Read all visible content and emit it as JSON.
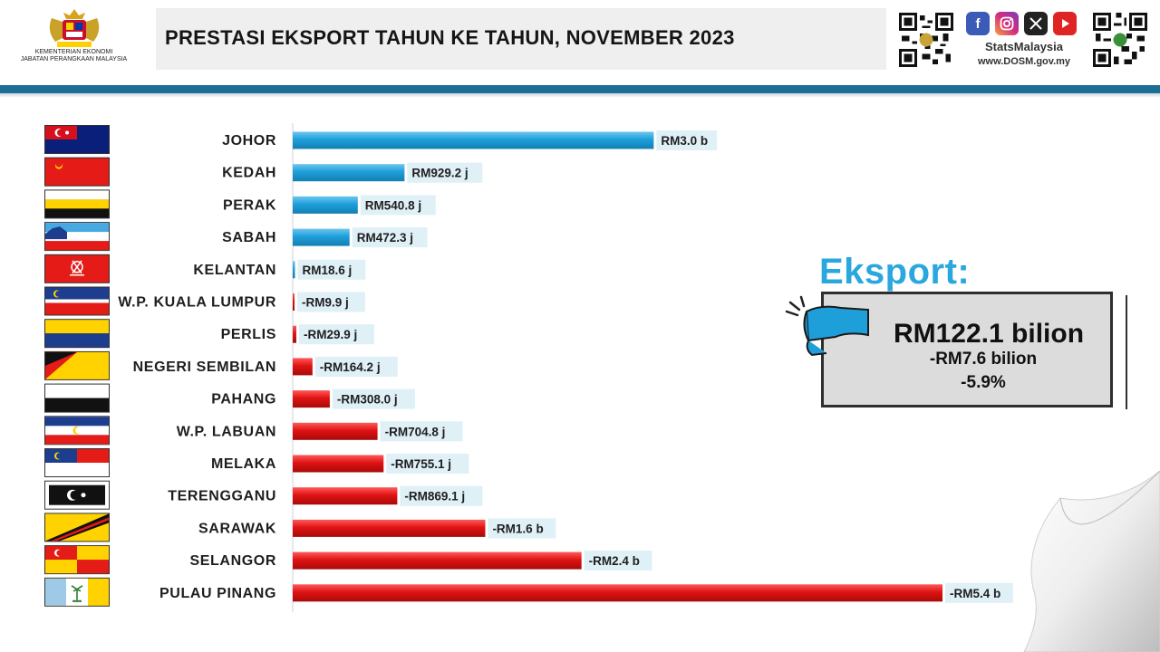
{
  "header": {
    "agency_lines": [
      "KEMENTERIAN EKONOMI",
      "JABATAN PERANGKAAN MALAYSIA"
    ],
    "title": "PRESTASI EKSPORT TAHUN KE TAHUN, NOVEMBER 2023",
    "brand_name": "StatsMalaysia",
    "brand_url": "www.DOSM.gov.my",
    "social_icons": [
      "facebook-icon",
      "instagram-icon",
      "x-icon",
      "youtube-icon"
    ]
  },
  "colors": {
    "positive": "#1e9fda",
    "negative": "#e01313",
    "accent": "#1c6e95",
    "callout_title": "#2aa7de",
    "label_bg": "#dff0f6"
  },
  "callout": {
    "title": "Eksport:",
    "value": "RM122.1 bilion",
    "change": "-RM7.6 bilion",
    "percent": "-5.9%"
  },
  "chart_data": {
    "type": "bar",
    "orientation": "horizontal",
    "unit": "RM juta",
    "categories": [
      "JOHOR",
      "KEDAH",
      "PERAK",
      "SABAH",
      "KELANTAN",
      "W.P. KUALA LUMPUR",
      "PERLIS",
      "NEGERI SEMBILAN",
      "PAHANG",
      "W.P. LABUAN",
      "MELAKA",
      "TERENGGANU",
      "SARAWAK",
      "SELANGOR",
      "PULAU PINANG"
    ],
    "values": [
      3000,
      929.2,
      540.8,
      472.3,
      18.6,
      -9.9,
      -29.9,
      -164.2,
      -308.0,
      -704.8,
      -755.1,
      -869.1,
      -1600,
      -2400,
      -5400
    ],
    "labels": [
      "RM3.0 b",
      "RM929.2 j",
      "RM540.8 j",
      "RM472.3 j",
      "RM18.6 j",
      "-RM9.9 j",
      "-RM29.9 j",
      "-RM164.2 j",
      "-RM308.0 j",
      "-RM704.8 j",
      "-RM755.1 j",
      "-RM869.1 j",
      "-RM1.6 b",
      "-RM2.4 b",
      "-RM5.4 b"
    ],
    "flags": [
      "flag-johor",
      "flag-kedah",
      "flag-perak",
      "flag-sabah",
      "flag-kelantan",
      "flag-kuala-lumpur",
      "flag-perlis",
      "flag-negeri-sembilan",
      "flag-pahang",
      "flag-labuan",
      "flag-melaka",
      "flag-terengganu",
      "flag-sarawak",
      "flag-selangor",
      "flag-pulau-pinang"
    ],
    "title": "PRESTASI EKSPORT TAHUN KE TAHUN, NOVEMBER 2023",
    "xlabel": "",
    "ylabel": "",
    "grid": false,
    "legend": "none"
  }
}
